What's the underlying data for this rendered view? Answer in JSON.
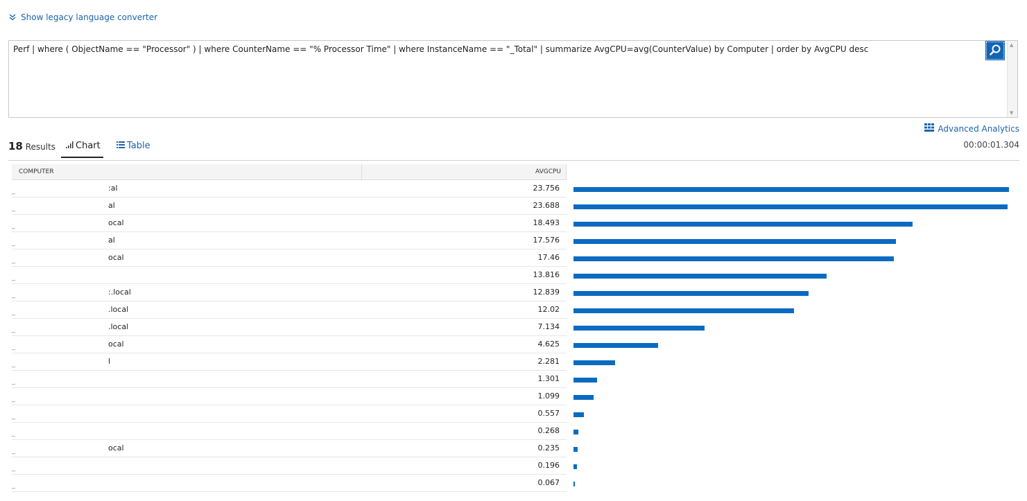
{
  "legacy_toggle": {
    "label": "Show legacy language converter",
    "icon": "double-chevron-down-icon"
  },
  "query": {
    "text": "Perf | where ( ObjectName == \"Processor\" ) | where CounterName == \"% Processor Time\" | where InstanceName == \"_Total\" | summarize AvgCPU=avg(CounterValue) by Computer | order by AvgCPU desc",
    "search_icon": "search-icon"
  },
  "advanced_analytics": {
    "label": "Advanced Analytics",
    "icon": "grid-icon"
  },
  "elapsed": "00:00:01.304",
  "results": {
    "count": "18",
    "label": "Results"
  },
  "tabs": [
    {
      "label": "Chart",
      "icon": "bar-chart-icon",
      "active": true
    },
    {
      "label": "Table",
      "icon": "table-icon",
      "active": false
    }
  ],
  "columns": {
    "computer": "COMPUTER",
    "avgcpu": "AVGCPU"
  },
  "colors": {
    "accent": "#1a64ad",
    "bar": "#0a6bc1"
  },
  "chart_data": {
    "type": "bar",
    "orientation": "horizontal",
    "categories": [
      ":al",
      "al",
      "ocal",
      "al",
      "ocal",
      "",
      ":.local",
      ".local",
      ".local",
      "ocal",
      "l",
      "",
      "",
      "",
      "",
      "ocal",
      "",
      ""
    ],
    "values": [
      23.756,
      23.688,
      18.493,
      17.576,
      17.46,
      13.816,
      12.839,
      12.02,
      7.134,
      4.625,
      2.281,
      1.301,
      1.099,
      0.557,
      0.268,
      0.235,
      0.196,
      0.067
    ],
    "value_labels": [
      "23.756",
      "23.688",
      "18.493",
      "17.576",
      "17.46",
      "13.816",
      "12.839",
      "12.02",
      "7.134",
      "4.625",
      "2.281",
      "1.301",
      "1.099",
      "0.557",
      "0.268",
      "0.235",
      "0.196",
      "0.067"
    ],
    "xlim": [
      0,
      23.756
    ]
  }
}
